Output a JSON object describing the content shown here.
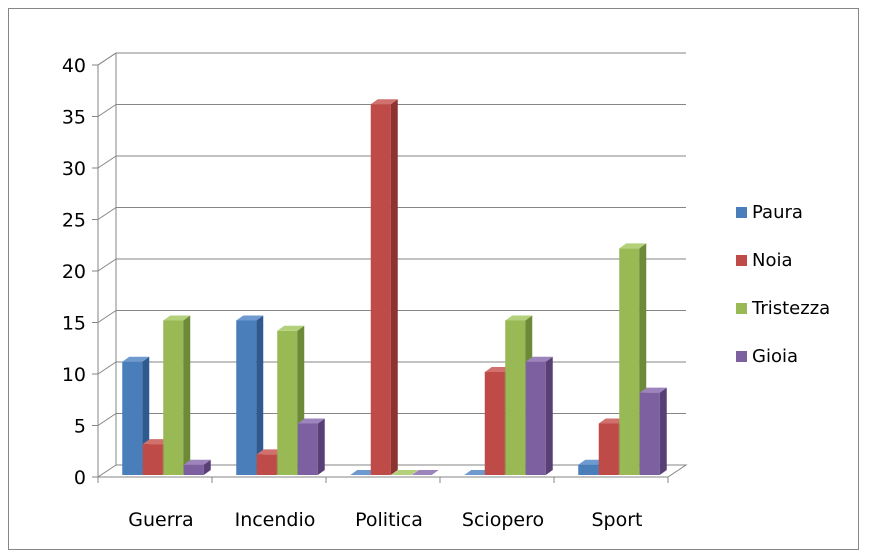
{
  "chart_data": {
    "type": "bar",
    "categories": [
      "Guerra",
      "Incendio",
      "Politica",
      "Sciopero",
      "Sport"
    ],
    "series": [
      {
        "name": "Paura",
        "values": [
          11,
          15,
          0,
          0,
          1
        ],
        "color": "#4a7ebb",
        "side": "#2f5a8f",
        "top": "#6f9ad0"
      },
      {
        "name": "Noia",
        "values": [
          3,
          2,
          36,
          10,
          5
        ],
        "color": "#be4b48",
        "side": "#8d3331",
        "top": "#d0716e"
      },
      {
        "name": "Tristezza",
        "values": [
          15,
          14,
          0,
          15,
          22
        ],
        "color": "#98b954",
        "side": "#6c8a38",
        "top": "#b3d07a"
      },
      {
        "name": "Gioia",
        "values": [
          1,
          5,
          0,
          11,
          8
        ],
        "color": "#7d60a0",
        "side": "#584076",
        "top": "#9d84bd"
      }
    ],
    "yticks": [
      "0",
      "5",
      "10",
      "15",
      "20",
      "25",
      "30",
      "35",
      "40"
    ],
    "ylim": [
      0,
      40
    ],
    "grid": true,
    "legend": "right"
  }
}
